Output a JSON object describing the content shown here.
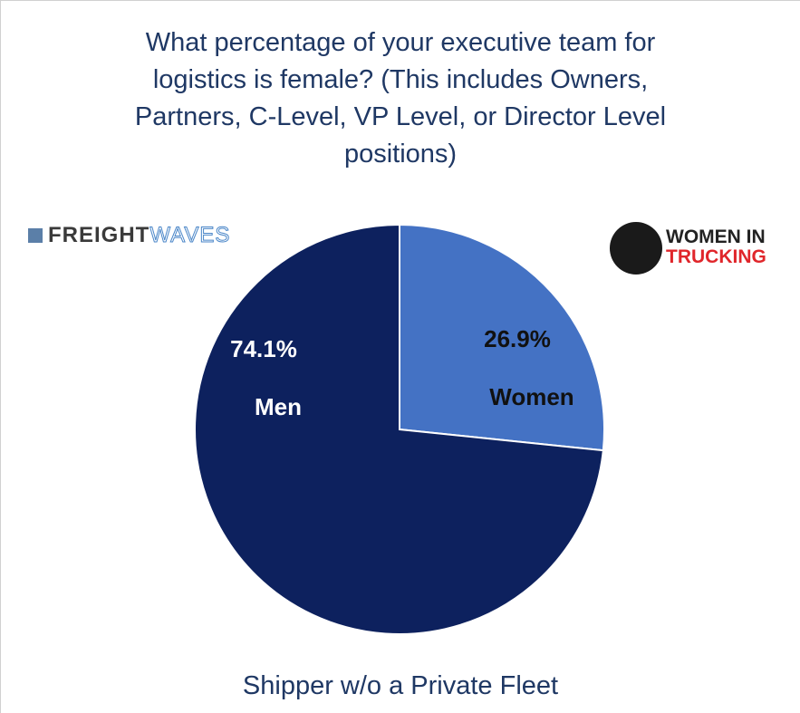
{
  "chart_data": {
    "type": "pie",
    "title": "What percentage of your executive team for logistics is female? (This includes Owners, Partners, C-Level, VP Level, or Director Level positions)",
    "subtitle": "Shipper w/o a Private Fleet",
    "categories": [
      "Women",
      "Men"
    ],
    "values": [
      26.9,
      74.1
    ],
    "value_labels": [
      "26.9%",
      "74.1%"
    ],
    "colors": [
      "#4472c4",
      "#0d215e"
    ],
    "label_colors": [
      "#111111",
      "#ffffff"
    ]
  },
  "logos": {
    "freightwaves": [
      "FREIGHT",
      "WAVES"
    ],
    "women_in_trucking": [
      "WOMEN IN",
      "TRUCKING"
    ]
  }
}
